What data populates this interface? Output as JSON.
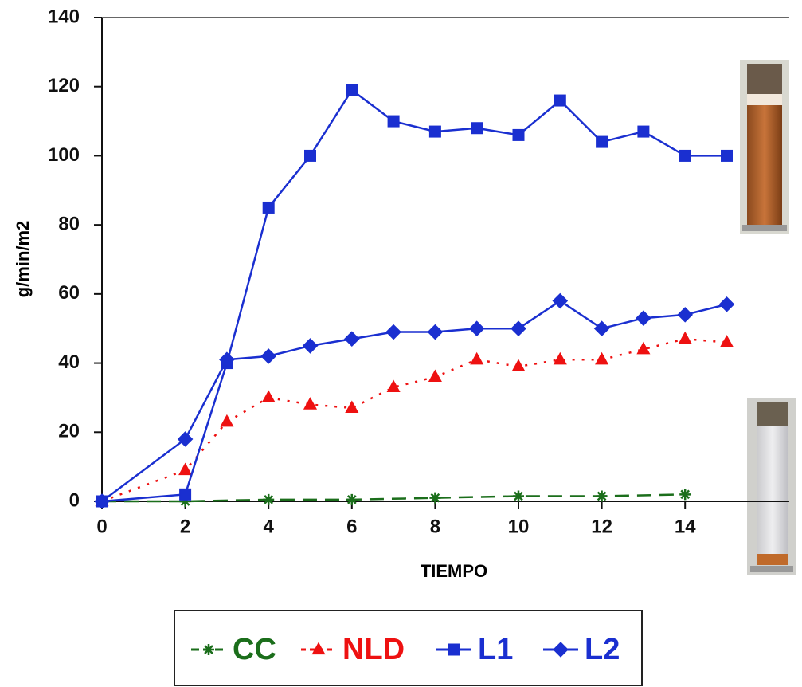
{
  "chart_data": {
    "type": "line",
    "x_label": "TIEMPO",
    "y_label": "g/min/m2",
    "xlim": [
      0,
      16.5
    ],
    "ylim": [
      0,
      140
    ],
    "xticks": [
      0,
      2,
      4,
      6,
      8,
      10,
      12,
      14
    ],
    "yticks": [
      0,
      20,
      40,
      60,
      80,
      100,
      120,
      140
    ],
    "series": [
      {
        "name": "CC",
        "color": "#1b6e1b",
        "marker": "star",
        "dash": "dashed",
        "x": [
          0,
          2,
          4,
          6,
          8,
          10,
          12,
          14
        ],
        "values": [
          0,
          0,
          0.5,
          0.5,
          1,
          1.5,
          1.5,
          2
        ]
      },
      {
        "name": "NLD",
        "color": "#ee1111",
        "marker": "triangle",
        "dash": "dotted",
        "x": [
          0,
          2,
          3,
          4,
          5,
          6,
          7,
          8,
          9,
          10,
          11,
          12,
          13,
          14,
          15
        ],
        "values": [
          0,
          9,
          23,
          30,
          28,
          27,
          33,
          36,
          41,
          39,
          41,
          41,
          44,
          47,
          46
        ]
      },
      {
        "name": "L1",
        "color": "#1a2fd0",
        "marker": "square",
        "dash": "solid",
        "x": [
          0,
          2,
          3,
          4,
          5,
          6,
          7,
          8,
          9,
          10,
          11,
          12,
          13,
          14,
          15
        ],
        "values": [
          0,
          2,
          40,
          85,
          100,
          119,
          110,
          107,
          108,
          106,
          116,
          104,
          107,
          100,
          100
        ]
      },
      {
        "name": "L2",
        "color": "#1a2fd0",
        "marker": "diamond",
        "dash": "solid",
        "x": [
          0,
          2,
          3,
          4,
          5,
          6,
          7,
          8,
          9,
          10,
          11,
          12,
          13,
          14,
          15
        ],
        "values": [
          0,
          18,
          41,
          42,
          45,
          47,
          49,
          49,
          50,
          50,
          58,
          50,
          53,
          54,
          57
        ]
      }
    ]
  }
}
